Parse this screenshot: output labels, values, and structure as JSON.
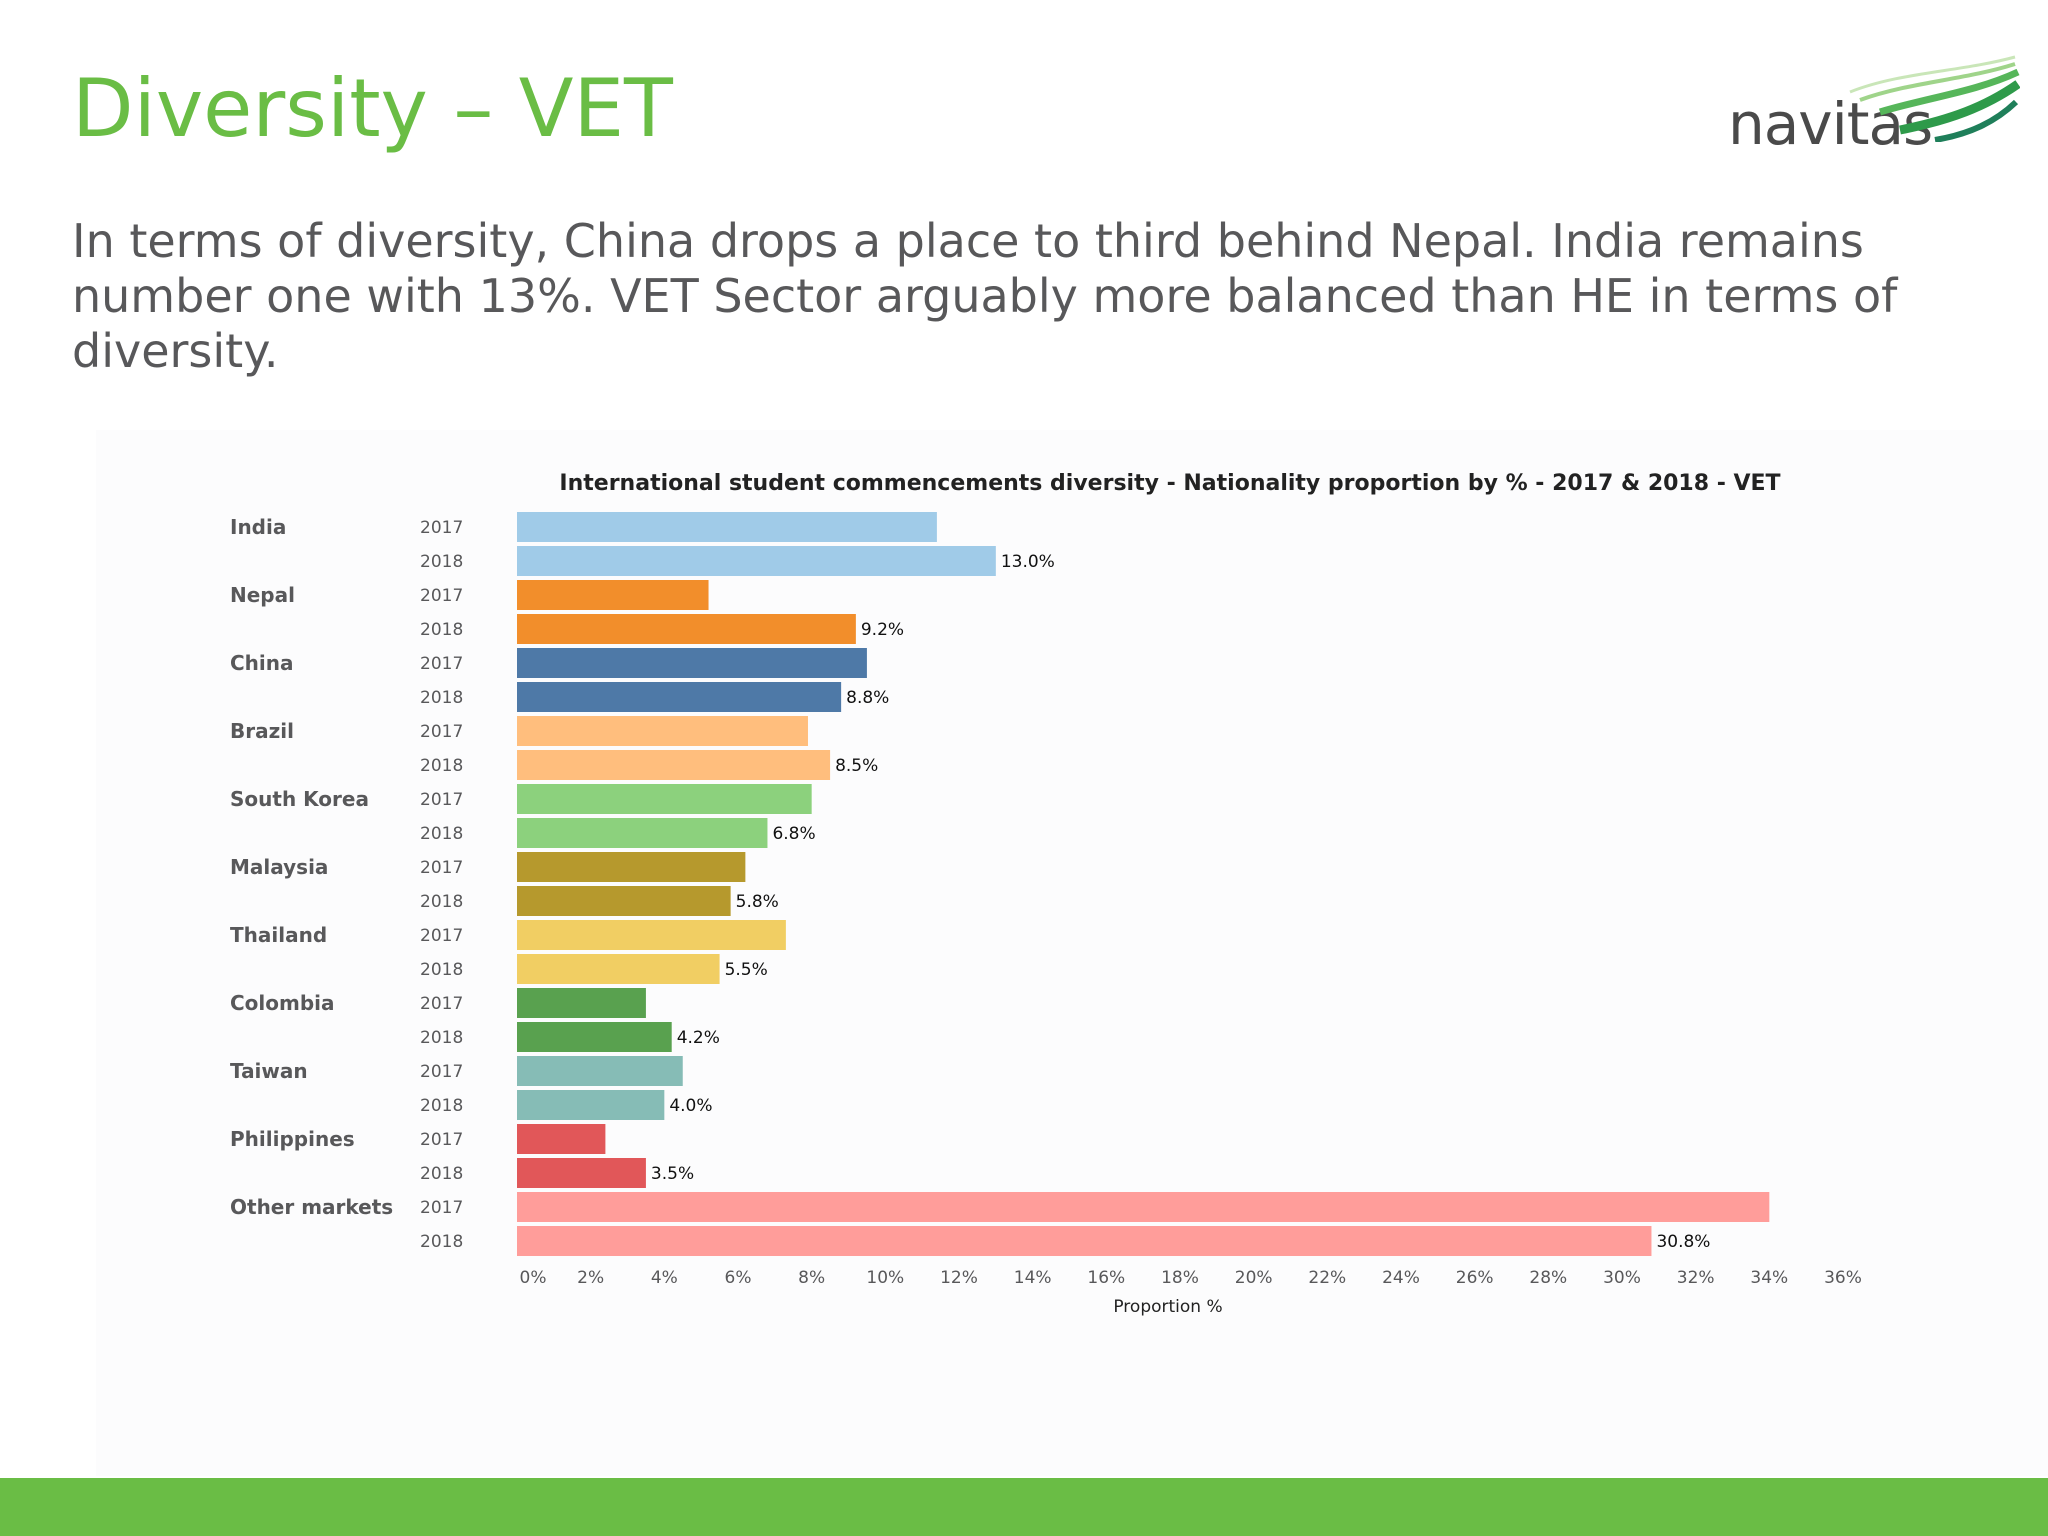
{
  "slide": {
    "title": "Diversity – VET",
    "body": "In terms of diversity, China drops a place to third behind Nepal. India remains number one with 13%. VET Sector arguably more balanced than HE in terms of diversity.",
    "logo_text": "navitas"
  },
  "colors": {
    "title": "#6abd45",
    "footer": "#6abd45",
    "body_text": "#58585a"
  },
  "chart_data": {
    "type": "bar",
    "orientation": "horizontal",
    "title": "International student commencements diversity -  Nationality proportion by % - 2017 & 2018 - VET",
    "xlabel": "Proportion %",
    "ylabel": "",
    "xlim": [
      0,
      36
    ],
    "x_ticks": [
      "0%",
      "2%",
      "4%",
      "6%",
      "8%",
      "10%",
      "12%",
      "14%",
      "16%",
      "18%",
      "20%",
      "22%",
      "24%",
      "26%",
      "28%",
      "30%",
      "32%",
      "34%",
      "36%"
    ],
    "x_tick_values": [
      0,
      2,
      4,
      6,
      8,
      10,
      12,
      14,
      16,
      18,
      20,
      22,
      24,
      26,
      28,
      30,
      32,
      34,
      36
    ],
    "years": [
      "2017",
      "2018"
    ],
    "grid": false,
    "categories": [
      {
        "name": "India",
        "color": "#a0cbe8",
        "values": [
          11.4,
          13.0
        ],
        "label_2018": "13.0%"
      },
      {
        "name": "Nepal",
        "color": "#f28e2b",
        "values": [
          5.2,
          9.2
        ],
        "label_2018": "9.2%"
      },
      {
        "name": "China",
        "color": "#4e79a7",
        "values": [
          9.5,
          8.8
        ],
        "label_2018": "8.8%"
      },
      {
        "name": "Brazil",
        "color": "#ffbe7d",
        "values": [
          7.9,
          8.5
        ],
        "label_2018": "8.5%"
      },
      {
        "name": "South Korea",
        "color": "#8cd17d",
        "values": [
          8.0,
          6.8
        ],
        "label_2018": "6.8%"
      },
      {
        "name": "Malaysia",
        "color": "#b6992d",
        "values": [
          6.2,
          5.8
        ],
        "label_2018": "5.8%"
      },
      {
        "name": "Thailand",
        "color": "#f1ce63",
        "values": [
          7.3,
          5.5
        ],
        "label_2018": "5.5%"
      },
      {
        "name": "Colombia",
        "color": "#59a14f",
        "values": [
          3.5,
          4.2
        ],
        "label_2018": "4.2%"
      },
      {
        "name": "Taiwan",
        "color": "#86bcb6",
        "values": [
          4.5,
          4.0
        ],
        "label_2018": "4.0%"
      },
      {
        "name": "Philippines",
        "color": "#e15759",
        "values": [
          2.4,
          3.5
        ],
        "label_2018": "3.5%"
      },
      {
        "name": "Other markets",
        "color": "#ff9d9a",
        "values": [
          34.0,
          30.8
        ],
        "label_2018": "30.8%"
      }
    ]
  }
}
